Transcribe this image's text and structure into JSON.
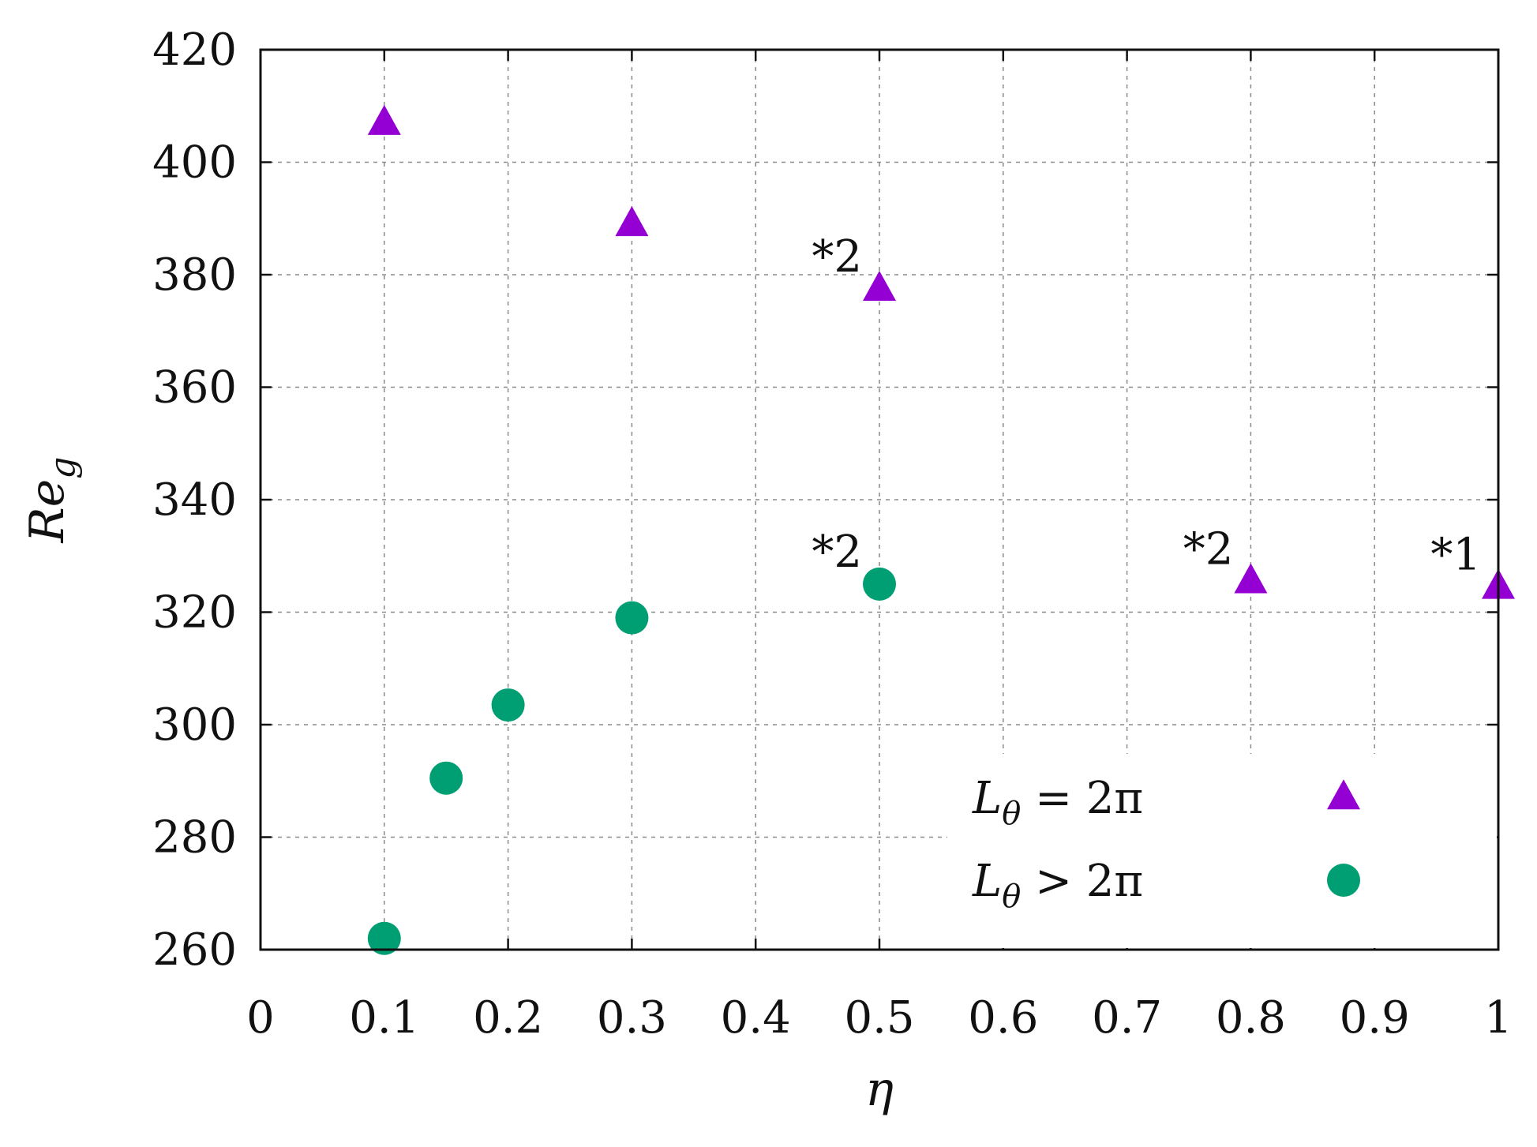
{
  "chart_data": {
    "type": "scatter",
    "xlabel": "η",
    "ylabel": "Re",
    "ylabel_sub": "g",
    "xlim": [
      0,
      1
    ],
    "ylim": [
      260,
      420
    ],
    "xticks": [
      0,
      0.1,
      0.2,
      0.3,
      0.4,
      0.5,
      0.6,
      0.7,
      0.8,
      0.9,
      1
    ],
    "xtick_labels": [
      "0",
      "0.1",
      "0.2",
      "0.3",
      "0.4",
      "0.5",
      "0.6",
      "0.7",
      "0.8",
      "0.9",
      "1"
    ],
    "yticks": [
      260,
      280,
      300,
      320,
      340,
      360,
      380,
      400,
      420
    ],
    "ytick_labels": [
      "260",
      "280",
      "300",
      "320",
      "340",
      "360",
      "380",
      "400",
      "420"
    ],
    "grid": true,
    "legend_position": "bottom-right",
    "series": [
      {
        "name": "Lθ = 2π",
        "marker": "triangle",
        "color": "#9400d3",
        "points": [
          {
            "x": 0.1,
            "y": 407
          },
          {
            "x": 0.3,
            "y": 389
          },
          {
            "x": 0.5,
            "y": 377.5
          },
          {
            "x": 0.8,
            "y": 325.5
          },
          {
            "x": 1.0,
            "y": 324.5
          }
        ]
      },
      {
        "name": "Lθ > 2π",
        "marker": "circle",
        "color": "#009e73",
        "points": [
          {
            "x": 0.1,
            "y": 262
          },
          {
            "x": 0.15,
            "y": 290.5
          },
          {
            "x": 0.2,
            "y": 303.5
          },
          {
            "x": 0.3,
            "y": 319
          },
          {
            "x": 0.5,
            "y": 325
          }
        ]
      }
    ],
    "annotations": [
      {
        "text": "*2",
        "x": 0.5,
        "y": 377.5
      },
      {
        "text": "*2",
        "x": 0.5,
        "y": 325
      },
      {
        "text": "*2",
        "x": 0.8,
        "y": 325.5
      },
      {
        "text": "*1",
        "x": 1.0,
        "y": 324.5
      }
    ],
    "legend": [
      {
        "main": "L",
        "sub": "θ",
        "rel": " = 2π"
      },
      {
        "main": "L",
        "sub": "θ",
        "rel": " > 2π"
      }
    ]
  }
}
